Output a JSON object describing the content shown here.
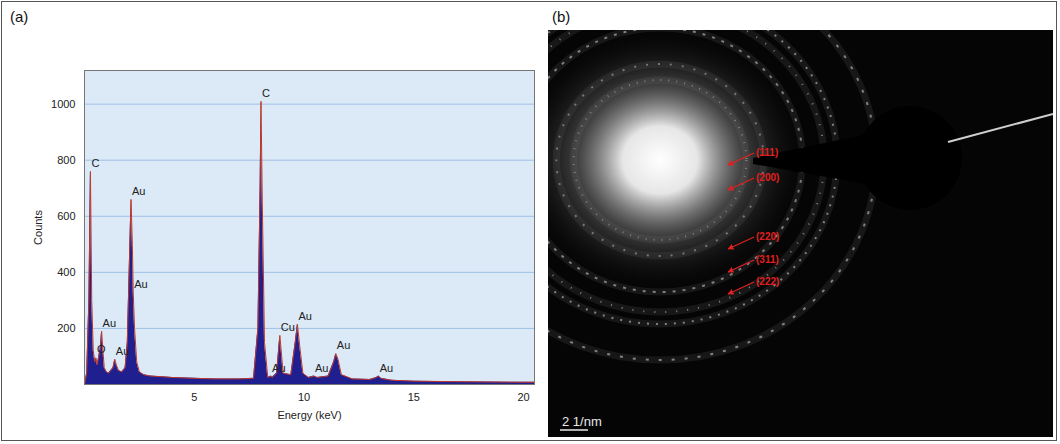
{
  "chart_data": {
    "panel": "(a)",
    "type": "area",
    "x_label": "Energy (keV)",
    "y_label": "Counts",
    "color": "#1f1f8f",
    "grid": true,
    "xlim": [
      0,
      20.5
    ],
    "xticks": [
      5,
      10,
      15,
      20
    ],
    "ylim": [
      0,
      1120
    ],
    "yticks": [
      200,
      400,
      600,
      800,
      1000
    ],
    "x": [
      0.0,
      0.1,
      0.2,
      0.27,
      0.33,
      0.4,
      0.47,
      0.52,
      0.58,
      0.65,
      0.72,
      0.78,
      0.84,
      0.9,
      1.0,
      1.1,
      1.2,
      1.3,
      1.38,
      1.45,
      1.55,
      1.7,
      1.85,
      1.95,
      2.05,
      2.12,
      2.18,
      2.22,
      2.28,
      2.38,
      2.5,
      2.7,
      3.0,
      3.5,
      4.0,
      5.0,
      6.0,
      7.0,
      7.7,
      7.9,
      8.0,
      8.04,
      8.1,
      8.2,
      8.35,
      8.5,
      8.55,
      8.75,
      8.85,
      8.9,
      8.95,
      9.05,
      9.4,
      9.6,
      9.7,
      9.8,
      9.95,
      10.2,
      10.45,
      10.6,
      11.1,
      11.35,
      11.45,
      11.55,
      11.7,
      12.2,
      13.0,
      13.3,
      13.4,
      13.5,
      14.0,
      15.0,
      17.0,
      20.0,
      20.5
    ],
    "values": [
      0,
      40,
      300,
      760,
      300,
      120,
      80,
      95,
      70,
      100,
      130,
      190,
      120,
      60,
      45,
      40,
      50,
      60,
      90,
      70,
      50,
      45,
      60,
      150,
      450,
      660,
      500,
      330,
      200,
      80,
      45,
      35,
      30,
      28,
      25,
      22,
      20,
      20,
      22,
      200,
      700,
      1010,
      650,
      150,
      25,
      30,
      25,
      40,
      130,
      175,
      130,
      40,
      35,
      150,
      215,
      140,
      40,
      25,
      30,
      25,
      30,
      80,
      110,
      90,
      35,
      20,
      18,
      25,
      30,
      22,
      15,
      12,
      10,
      8,
      8
    ],
    "annotations": [
      {
        "text": "C",
        "x": 0.27,
        "y": 760
      },
      {
        "text": "O",
        "x": 0.52,
        "y": 95
      },
      {
        "text": "Au",
        "x": 0.78,
        "y": 190
      },
      {
        "text": "Au",
        "x": 1.38,
        "y": 90
      },
      {
        "text": "Au",
        "x": 2.12,
        "y": 660
      },
      {
        "text": "Au",
        "x": 2.22,
        "y": 330
      },
      {
        "text": "C",
        "x": 8.04,
        "y": 1010
      },
      {
        "text": "Au",
        "x": 8.5,
        "y": 30
      },
      {
        "text": "Cu",
        "x": 8.9,
        "y": 175
      },
      {
        "text": "Au",
        "x": 9.7,
        "y": 215
      },
      {
        "text": "Au",
        "x": 10.45,
        "y": 30
      },
      {
        "text": "Au",
        "x": 11.45,
        "y": 110
      },
      {
        "text": "Au",
        "x": 13.4,
        "y": 30
      }
    ]
  },
  "image": {
    "panel": "(b)",
    "ring_labels": [
      "(111)",
      "(200)",
      "(220)",
      "(311)",
      "(222)"
    ],
    "scale_bar": "2 1/nm"
  }
}
